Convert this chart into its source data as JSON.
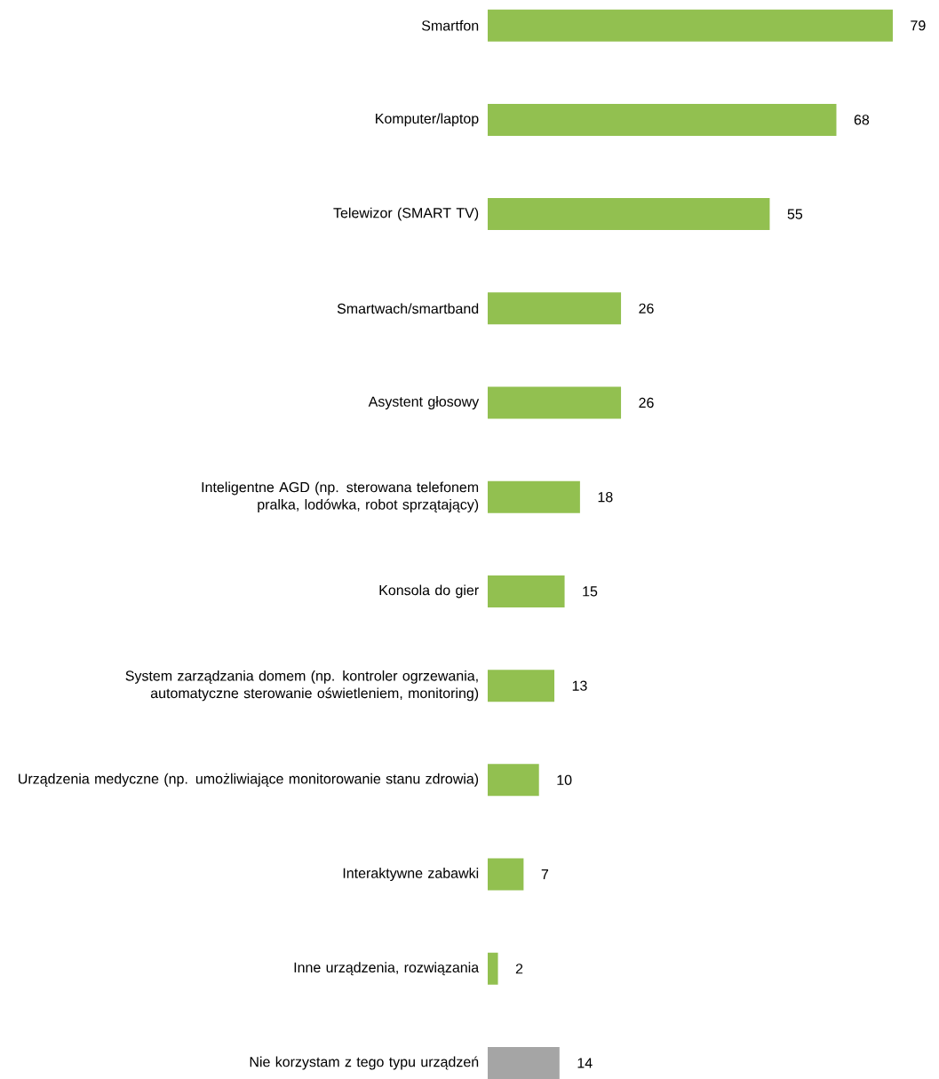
{
  "chart_data": {
    "type": "bar",
    "orientation": "horizontal",
    "data_labels": true,
    "categories": [
      "Smartfon",
      "Komputer/laptop",
      "Telewizor (SMART TV)",
      "Smartwach/smartband",
      "Asystent głosowy",
      "Inteligentne AGD (np. sterowana telefonem pralka, lodówka, robot sprzątający)",
      "Konsola do gier",
      "System zarządzania domem (np. kontroler ogrzewania, automatyczne sterowanie oświetleniem, monitoring)",
      "Urządzenia medyczne (np. umożliwiające monitorowanie stanu zdrowia)",
      "Interaktywne zabawki",
      "Inne urządzenia, rozwiązania",
      "Nie korzystam z tego typu urządzeń"
    ],
    "values": [
      79,
      68,
      55,
      26,
      26,
      18,
      15,
      13,
      10,
      7,
      2,
      14
    ],
    "colors": [
      "#92c050",
      "#92c050",
      "#92c050",
      "#92c050",
      "#92c050",
      "#92c050",
      "#92c050",
      "#92c050",
      "#92c050",
      "#92c050",
      "#92c050",
      "#a5a5a5"
    ]
  }
}
